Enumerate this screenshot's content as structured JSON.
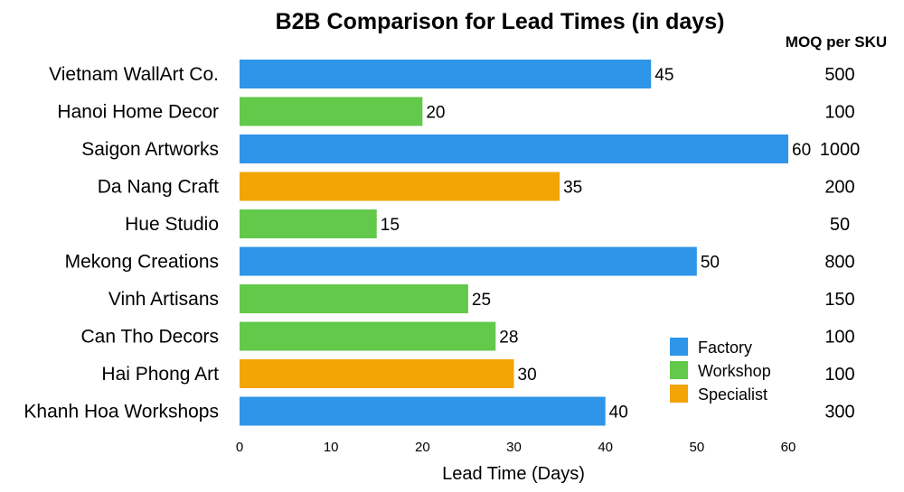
{
  "chart_data": {
    "type": "bar",
    "orientation": "horizontal",
    "title": "B2B Comparison for Lead Times (in days)",
    "xlabel": "Lead Time (Days)",
    "ylabel": "",
    "xlim": [
      0,
      60
    ],
    "x_ticks": [
      "0",
      "10",
      "20",
      "30",
      "40",
      "50",
      "60"
    ],
    "grid": false,
    "legend_position": "bottom-right",
    "side_column_header": "MOQ per SKU",
    "categories": [
      "Vietnam WallArt Co.",
      "Hanoi Home Decor",
      "Saigon Artworks",
      "Da Nang Craft",
      "Hue Studio",
      "Mekong Creations",
      "Vinh Artisans",
      "Can Tho Decors",
      "Hai Phong Art",
      "Khanh Hoa Workshops"
    ],
    "values": [
      45,
      20,
      60,
      35,
      15,
      50,
      25,
      28,
      30,
      40
    ],
    "value_labels": [
      "45",
      "20",
      "60",
      "35",
      "15",
      "50",
      "25",
      "28",
      "30",
      "40"
    ],
    "types": [
      "Factory",
      "Workshop",
      "Factory",
      "Specialist",
      "Workshop",
      "Factory",
      "Workshop",
      "Workshop",
      "Specialist",
      "Factory"
    ],
    "moq": [
      "500",
      "100",
      "1000",
      "200",
      "50",
      "800",
      "150",
      "100",
      "100",
      "300"
    ],
    "legend": [
      {
        "name": "Factory",
        "color": "#2f95e8"
      },
      {
        "name": "Workshop",
        "color": "#62c94a"
      },
      {
        "name": "Specialist",
        "color": "#f2a504"
      }
    ]
  }
}
